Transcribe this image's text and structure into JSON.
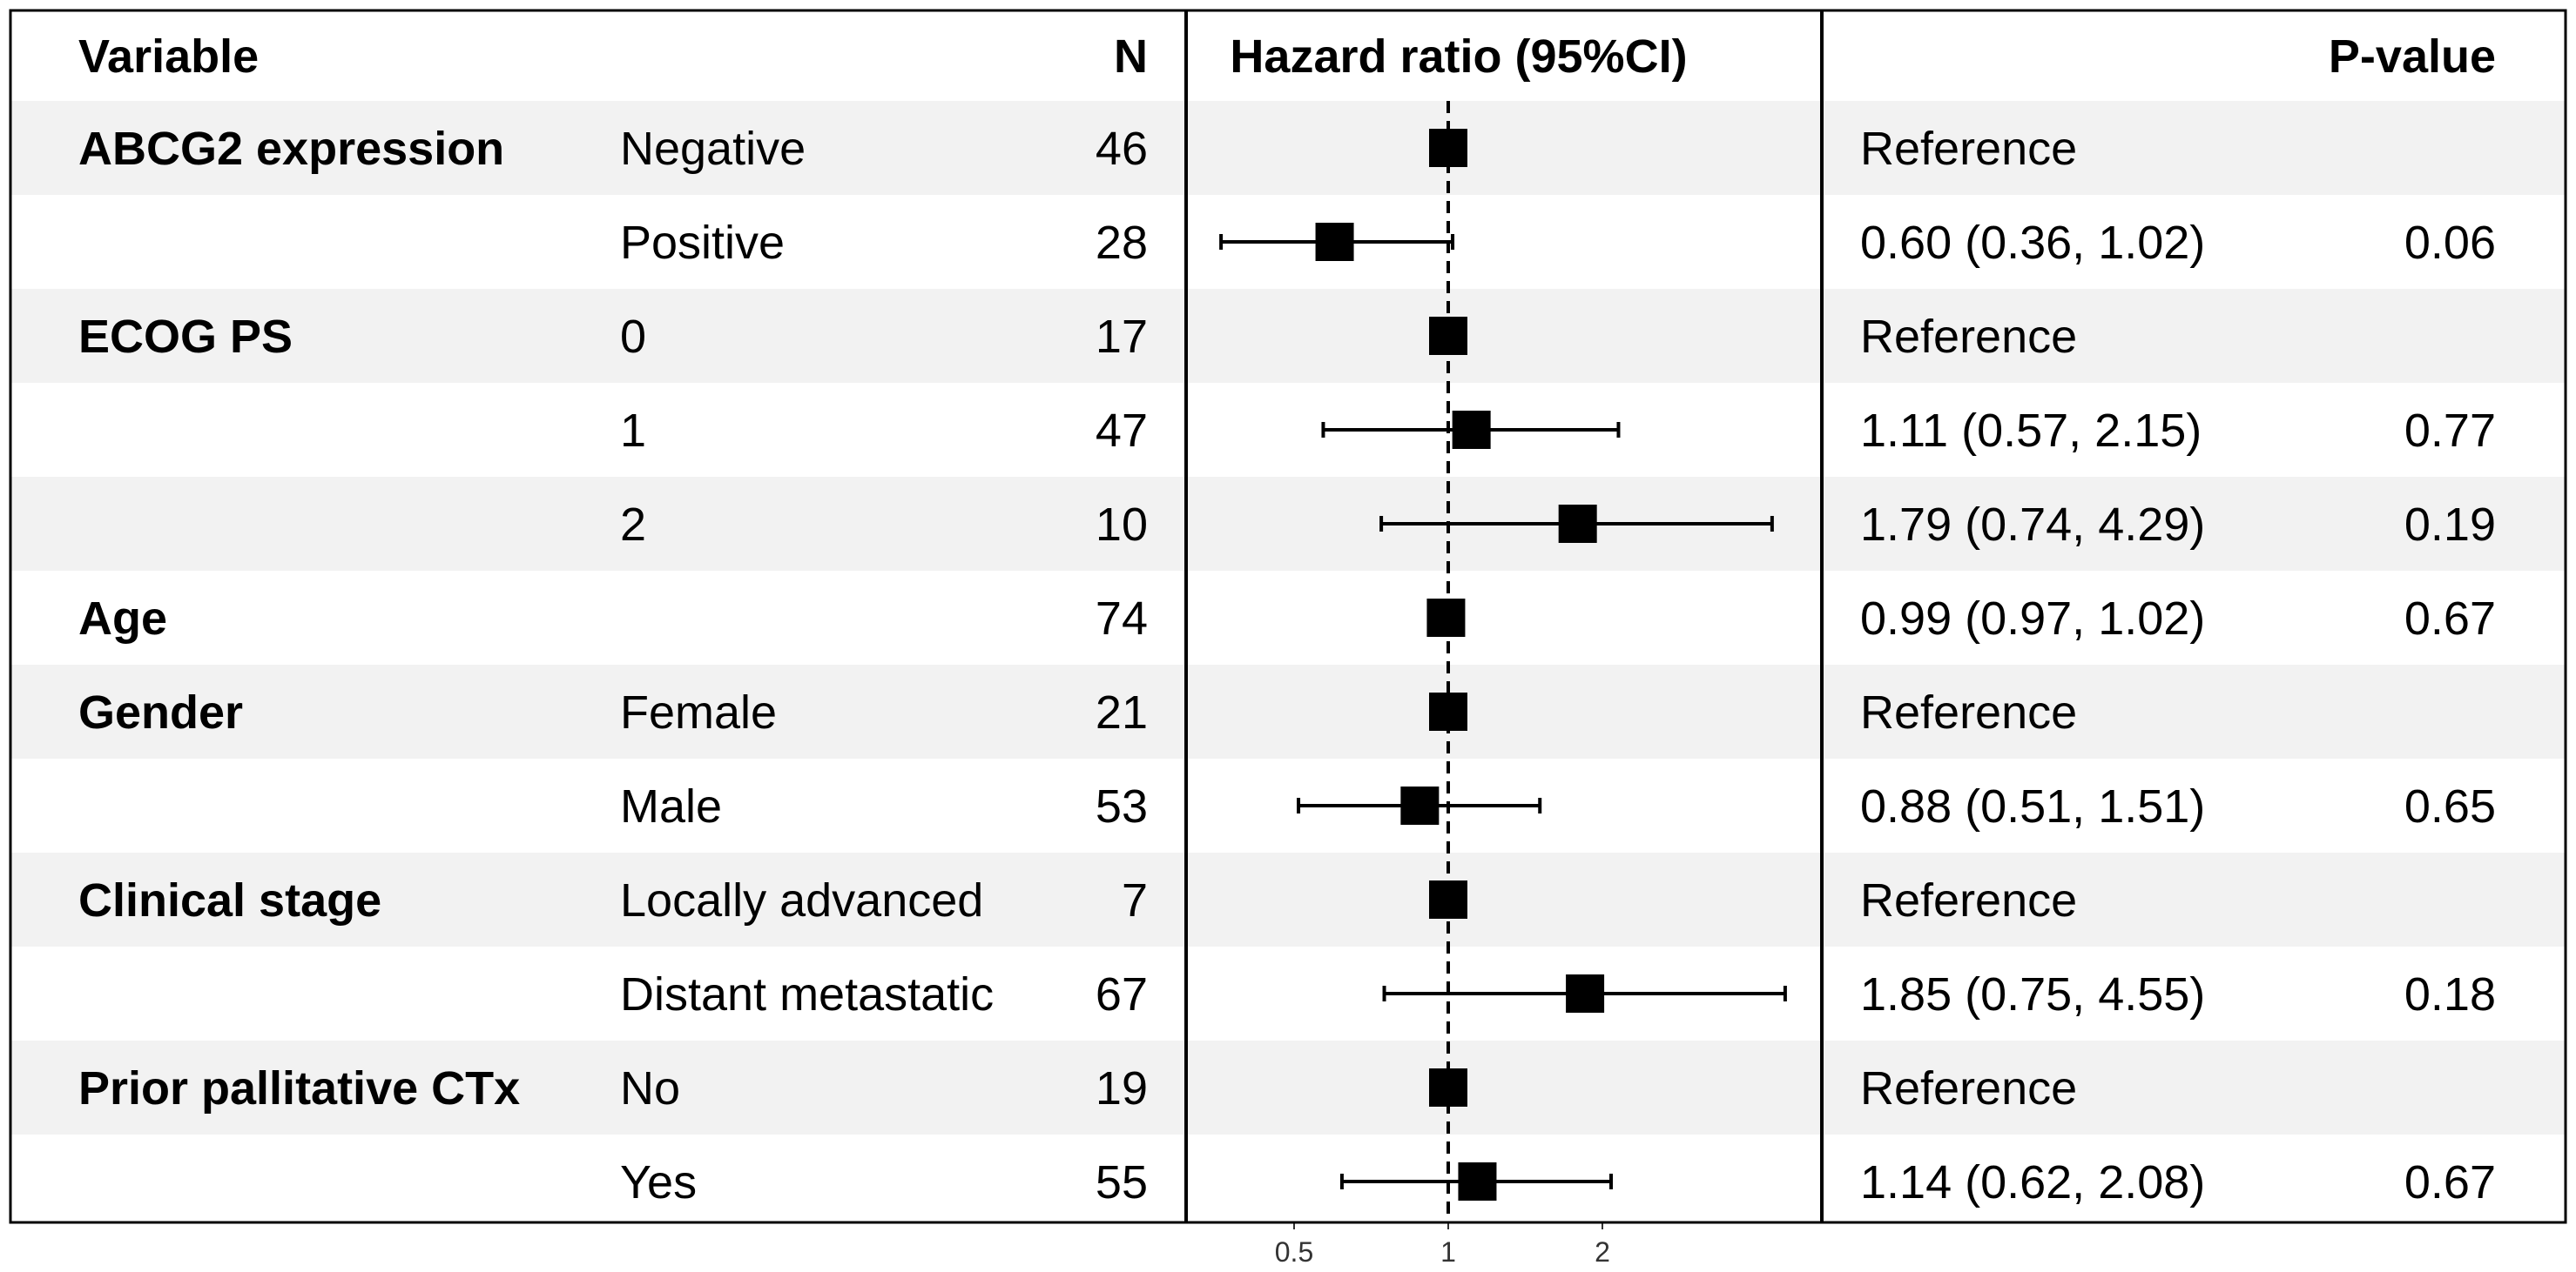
{
  "chart_data": {
    "type": "forest",
    "scale": "log",
    "reference_line": 1,
    "x_ticks": [
      "0.5",
      "1",
      "2"
    ],
    "x_tick_values": [
      0.5,
      1,
      2
    ],
    "xlim": [
      0.27,
      6.2
    ],
    "headers": {
      "variable": "Variable",
      "n": "N",
      "hr": "Hazard ratio (95%CI)",
      "pvalue": "P-value"
    },
    "rows": [
      {
        "variable": "ABCG2 expression",
        "level": "Negative",
        "n": "46",
        "hr": 1,
        "lo": null,
        "hi": null,
        "hr_text": "Reference",
        "p": ""
      },
      {
        "variable": "",
        "level": "Positive",
        "n": "28",
        "hr": 0.6,
        "lo": 0.36,
        "hi": 1.02,
        "hr_text": "0.60 (0.36, 1.02)",
        "p": "0.06"
      },
      {
        "variable": "ECOG PS",
        "level": "0",
        "n": "17",
        "hr": 1,
        "lo": null,
        "hi": null,
        "hr_text": "Reference",
        "p": ""
      },
      {
        "variable": "",
        "level": "1",
        "n": "47",
        "hr": 1.11,
        "lo": 0.57,
        "hi": 2.15,
        "hr_text": "1.11 (0.57, 2.15)",
        "p": "0.77"
      },
      {
        "variable": "",
        "level": "2",
        "n": "10",
        "hr": 1.79,
        "lo": 0.74,
        "hi": 4.29,
        "hr_text": "1.79 (0.74, 4.29)",
        "p": "0.19"
      },
      {
        "variable": "Age",
        "level": "",
        "n": "74",
        "hr": 0.99,
        "lo": 0.97,
        "hi": 1.02,
        "hr_text": "0.99 (0.97, 1.02)",
        "p": "0.67"
      },
      {
        "variable": "Gender",
        "level": "Female",
        "n": "21",
        "hr": 1,
        "lo": null,
        "hi": null,
        "hr_text": "Reference",
        "p": ""
      },
      {
        "variable": "",
        "level": "Male",
        "n": "53",
        "hr": 0.88,
        "lo": 0.51,
        "hi": 1.51,
        "hr_text": "0.88 (0.51, 1.51)",
        "p": "0.65"
      },
      {
        "variable": "Clinical stage",
        "level": "Locally advanced",
        "n": "7",
        "hr": 1,
        "lo": null,
        "hi": null,
        "hr_text": "Reference",
        "p": ""
      },
      {
        "variable": "",
        "level": "Distant metastatic",
        "n": "67",
        "hr": 1.85,
        "lo": 0.75,
        "hi": 4.55,
        "hr_text": "1.85 (0.75, 4.55)",
        "p": "0.18"
      },
      {
        "variable": "Prior pallitative CTx",
        "level": "No",
        "n": "19",
        "hr": 1,
        "lo": null,
        "hi": null,
        "hr_text": "Reference",
        "p": ""
      },
      {
        "variable": "",
        "level": "Yes",
        "n": "55",
        "hr": 1.14,
        "lo": 0.62,
        "hi": 2.08,
        "hr_text": "1.14 (0.62, 2.08)",
        "p": "0.67"
      }
    ],
    "colors": {
      "stripe": "#f2f2f2",
      "marker": "#000000",
      "border": "#000000"
    }
  }
}
